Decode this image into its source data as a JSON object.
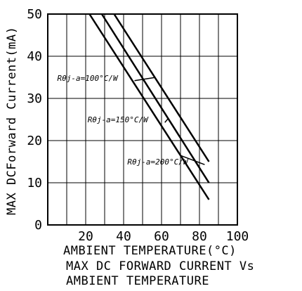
{
  "chart_data": {
    "type": "line",
    "xlabel": "AMBIENT TEMPERATURE(°C)",
    "ylabel": "MAX DCForward Current(mA)",
    "caption": [
      "MAX DC FORWARD CURRENT Vs",
      "AMBIENT TEMPERATURE"
    ],
    "xlim": [
      0,
      100
    ],
    "ylim": [
      0,
      50
    ],
    "xticks": [
      "20",
      "40",
      "60",
      "80",
      "100"
    ],
    "yticks": [
      "0",
      "10",
      "20",
      "30",
      "40",
      "50"
    ],
    "grid": true,
    "series": [
      {
        "label": "Rθj-a=100°C/W",
        "x": [
          35,
          85
        ],
        "y": [
          50,
          15
        ]
      },
      {
        "label": "Rθj-a=150°C/W",
        "x": [
          28.5,
          85
        ],
        "y": [
          50,
          10
        ]
      },
      {
        "label": "Rθj-a=200°C/W",
        "x": [
          22,
          85
        ],
        "y": [
          50,
          6
        ]
      }
    ],
    "annotations": [
      {
        "text": "Rθj-a=100°C/W",
        "series": 0,
        "at_x": 56.5,
        "text_x": 5,
        "text_y": 34.2
      },
      {
        "text": "Rθj-a=150°C/W",
        "series": 1,
        "at_x": 63.5,
        "text_x": 21,
        "text_y": 24.3
      },
      {
        "text": "Rθj-a=200°C/W",
        "series": 2,
        "at_x": 70,
        "text_x": 42,
        "text_y": 14.3
      }
    ]
  }
}
